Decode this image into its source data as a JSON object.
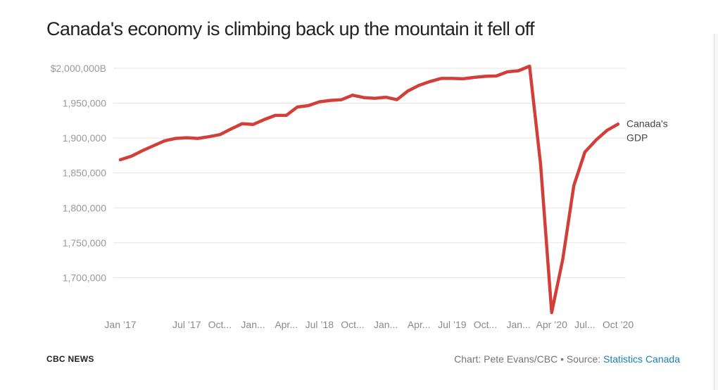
{
  "chart_data": {
    "type": "line",
    "title": "Canada's economy is climbing back up the mountain it fell off",
    "xlabel": "",
    "ylabel": "",
    "y_ticks": [
      {
        "value": 2000000,
        "label": "$2,000,000B"
      },
      {
        "value": 1950000,
        "label": "1,950,000"
      },
      {
        "value": 1900000,
        "label": "1,900,000"
      },
      {
        "value": 1850000,
        "label": "1,850,000"
      },
      {
        "value": 1800000,
        "label": "1,800,000"
      },
      {
        "value": 1750000,
        "label": "1,750,000"
      },
      {
        "value": 1700000,
        "label": "1,700,000"
      }
    ],
    "ylim": [
      1650000,
      2000000
    ],
    "grid": true,
    "x_ticks": [
      {
        "index": 0,
        "label": "Jan ’17"
      },
      {
        "index": 6,
        "label": "Jul ’17"
      },
      {
        "index": 9,
        "label": "Oct..."
      },
      {
        "index": 12,
        "label": "Jan..."
      },
      {
        "index": 15,
        "label": "Apr..."
      },
      {
        "index": 18,
        "label": "Jul ’18"
      },
      {
        "index": 21,
        "label": "Oct..."
      },
      {
        "index": 24,
        "label": "Jan..."
      },
      {
        "index": 27,
        "label": "Apr..."
      },
      {
        "index": 30,
        "label": "Jul ’19"
      },
      {
        "index": 33,
        "label": "Oct..."
      },
      {
        "index": 36,
        "label": "Jan..."
      },
      {
        "index": 39,
        "label": "Apr ’20"
      },
      {
        "index": 42,
        "label": "Jul..."
      },
      {
        "index": 45,
        "label": "Oct ’20"
      }
    ],
    "series": [
      {
        "name": "Canada's GDP",
        "color": "#d13f38",
        "x_start": "2017-01",
        "interval": "month",
        "values": [
          1869000,
          1874000,
          1882000,
          1889000,
          1896000,
          1899500,
          1900500,
          1899500,
          1902000,
          1905000,
          1913000,
          1920500,
          1919500,
          1926500,
          1932500,
          1932500,
          1944500,
          1946500,
          1952000,
          1954000,
          1955000,
          1961500,
          1958000,
          1957000,
          1958500,
          1955000,
          1967500,
          1975500,
          1981000,
          1985500,
          1985500,
          1985000,
          1987000,
          1988500,
          1989000,
          1995000,
          1996500,
          2003000,
          1862000,
          1650000,
          1726000,
          1832000,
          1880000,
          1897000,
          1911000,
          1920000
        ]
      }
    ]
  },
  "footer": {
    "logo": "CBC NEWS",
    "credit_text": "Chart: Pete Evans/CBC • Source: ",
    "credit_link": "Statistics Canada"
  }
}
